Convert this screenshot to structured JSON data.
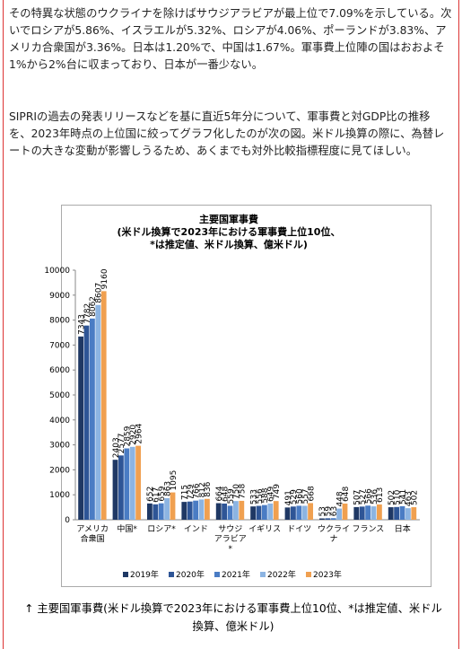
{
  "paragraphs": [
    "その特異な状態のウクライナを除けばサウジアラビアが最上位で7.09%を示している。次いでロシアが5.86%、イスラエルが5.32%、ロシアが4.06%、ポーランドが3.83%、アメリカ合衆国が3.36%。日本は1.20%で、中国は1.67%。軍事費上位陣の国はおおよそ1%から2%台に収まっており、日本が一番少ない。",
    "SIPRIの過去の発表リリースなどを基に直近5年分について、軍事費と対GDP比の推移を、2023年時点の上位国に絞ってグラフ化したのが次の図。米ドル換算の際に、為替レートの大きな変動が影響しうるため、あくまでも対外比較指標程度に見てほしい。"
  ],
  "chart_data": {
    "type": "bar",
    "title": "主要国軍事費\n(米ドル換算で2023年における軍事費上位10位、\n*は推定値、米ドル換算、億米ドル)",
    "categories": [
      "アメリカ\n合衆国",
      "中国*",
      "ロシア*",
      "インド",
      "サウジ\nアラビア\n*",
      "イギリス",
      "ドイツ",
      "ウクライナ",
      "フランス",
      "日本"
    ],
    "series": [
      {
        "name": "2019年",
        "color": "#1f3864",
        "values": [
          7343,
          2403,
          652,
          715,
          664,
          533,
          491,
          53,
          507,
          502
        ]
      },
      {
        "name": "2020年",
        "color": "#2e5596",
        "values": [
          7782,
          2577,
          617,
          729,
          648,
          556,
          529,
          59,
          527,
          510
        ]
      },
      {
        "name": "2021年",
        "color": "#4a7cc4",
        "values": [
          8062,
          2859,
          659,
          766,
          559,
          588,
          560,
          63,
          566,
          541
        ]
      },
      {
        "name": "2022年",
        "color": "#8cb4e2",
        "values": [
          8607,
          2920,
          863,
          812,
          750,
          649,
          557,
          448,
          536,
          463
        ]
      },
      {
        "name": "2023年",
        "color": "#f0a050",
        "values": [
          9160,
          2964,
          1095,
          836,
          758,
          749,
          668,
          648,
          613,
          502
        ]
      }
    ],
    "ylim": [
      0,
      10000
    ],
    "yticks": [
      0,
      1000,
      2000,
      3000,
      4000,
      5000,
      6000,
      7000,
      8000,
      9000,
      10000
    ]
  },
  "caption": "↑ 主要国軍事費(米ドル換算で2023年における軍事費上位10位、*は推定値、米ドル換算、億米ドル)"
}
